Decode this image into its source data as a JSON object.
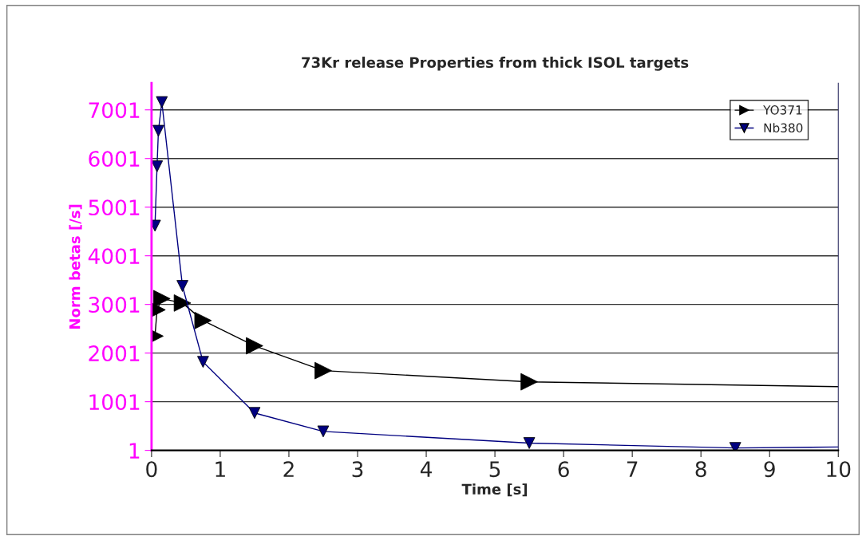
{
  "chart_data": {
    "type": "line",
    "title": "73Kr release Properties from thick ISOL targets",
    "xlabel": "Time [s]",
    "ylabel": "Norm betas [/s]",
    "series": [
      {
        "name": "YO371",
        "color": "#000000",
        "marker": "triangle",
        "x": [
          0.05,
          0.08,
          0.15,
          0.45,
          0.75,
          1.5,
          2.5,
          5.5,
          10
        ],
        "values": [
          2350,
          2890,
          3120,
          3030,
          2670,
          2150,
          1640,
          1410,
          1310
        ]
      },
      {
        "name": "Nb380",
        "color": "#000080",
        "marker": "triangle",
        "x": [
          0.05,
          0.08,
          0.1,
          0.15,
          0.45,
          0.75,
          1.5,
          2.5,
          5.5,
          8.5,
          10
        ],
        "values": [
          4620,
          5840,
          6570,
          7160,
          3380,
          1820,
          770,
          390,
          150,
          50,
          70
        ]
      }
    ],
    "xlim": [
      0,
      10
    ],
    "xticks": [
      0,
      1,
      2,
      3,
      4,
      5,
      6,
      7,
      8,
      9,
      10
    ],
    "ylim": [
      1,
      7550
    ],
    "yticks": [
      1,
      1001,
      2001,
      3001,
      4001,
      5001,
      6001,
      7001
    ],
    "grid": "y",
    "legend": "top right",
    "line_style": "solid"
  }
}
